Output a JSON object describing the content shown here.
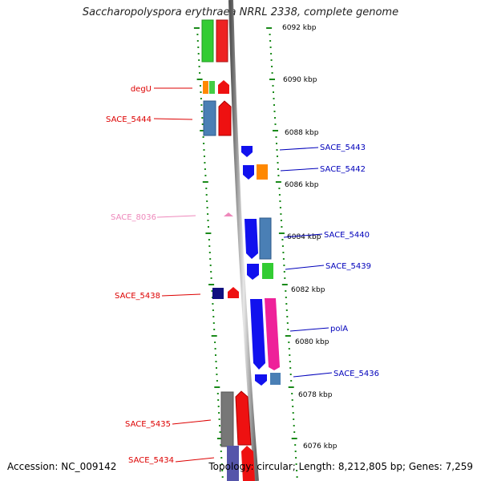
{
  "title": "Saccharopolyspora erythraea NRRL 2338, complete genome",
  "accession": "Accession: NC_009142",
  "topology": "Topology: circular; Length: 8,212,805 bp; Genes: 7,259",
  "kbp_marks": [
    "6092 kbp",
    "6090 kbp",
    "6088 kbp",
    "6086 kbp",
    "6084 kbp",
    "6082 kbp",
    "6080 kbp",
    "6078 kbp",
    "6076 kbp"
  ],
  "genes": [
    {
      "label": "degU",
      "strand": "-",
      "color": "#dd0000"
    },
    {
      "label": "SACE_5444",
      "strand": "-",
      "color": "#dd0000"
    },
    {
      "label": "SACE_5443",
      "strand": "+",
      "color": "#0000bb"
    },
    {
      "label": "SACE_5442",
      "strand": "+",
      "color": "#0000bb"
    },
    {
      "label": "SACE_8036",
      "strand": "-",
      "color": "#ee88bb"
    },
    {
      "label": "SACE_5440",
      "strand": "+",
      "color": "#0000bb"
    },
    {
      "label": "SACE_5439",
      "strand": "+",
      "color": "#0000bb"
    },
    {
      "label": "SACE_5438",
      "strand": "-",
      "color": "#dd0000"
    },
    {
      "label": "polA",
      "strand": "+",
      "color": "#0000bb"
    },
    {
      "label": "SACE_5436",
      "strand": "+",
      "color": "#0000bb"
    },
    {
      "label": "SACE_5435",
      "strand": "-",
      "color": "#dd0000"
    },
    {
      "label": "SACE_5434",
      "strand": "-",
      "color": "#dd0000"
    }
  ]
}
